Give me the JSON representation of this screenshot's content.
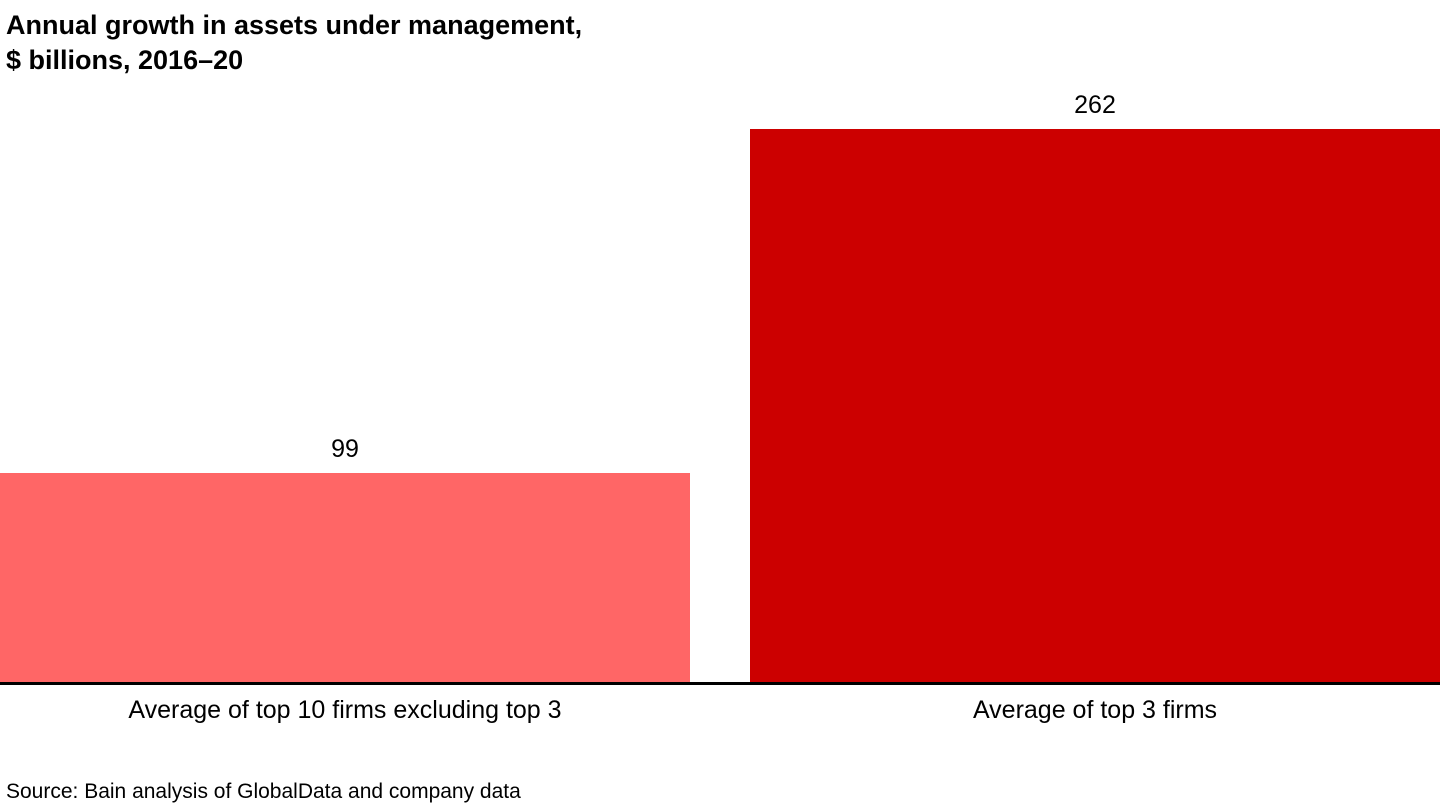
{
  "title": {
    "line1": "Annual growth in assets under management,",
    "line2": "$ billions, 2016–20"
  },
  "bars": [
    {
      "label": "Average of top 10 firms excluding top 3",
      "value": "99",
      "color": "#FF6666"
    },
    {
      "label": "Average of top 3 firms",
      "value": "262",
      "color": "#CC0000"
    }
  ],
  "source": "Source: Bain analysis of GlobalData and company data",
  "chart_data": {
    "type": "bar",
    "categories": [
      "Average of top 10 firms excluding top 3",
      "Average of top 3 firms"
    ],
    "values": [
      99,
      262
    ],
    "title": "Annual growth in assets under management, $ billions, 2016–20",
    "xlabel": "",
    "ylabel": "$ billions",
    "ylim": [
      0,
      262
    ],
    "grid": false,
    "legend": false,
    "colors": [
      "#FF6666",
      "#CC0000"
    ],
    "value_labels_shown": true,
    "source": "Source: Bain analysis of GlobalData and company data"
  }
}
